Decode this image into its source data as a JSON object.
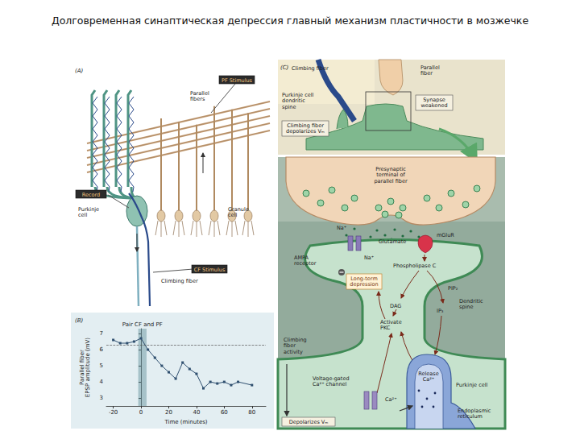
{
  "title": "Долговременная синаптическая депрессия главный механизм пластичности в мозжечке",
  "panel_a": {
    "label": "(A)",
    "pf_stimulus": "PF Stimulus",
    "parallel_fibers": "Parallel\nfibers",
    "record": "Record",
    "purkinje_cell": "Purkinje\ncell",
    "granule_cell": "Granule\ncell",
    "cf_stimulus": "CF Stimulus",
    "climbing_fiber": "Climbing fiber"
  },
  "panel_c_top": {
    "label": "(C)",
    "climbing_fiber": "Climbing fiber",
    "parallel_fiber": "Parallel\nfiber",
    "spine": "Purkinje cell\ndendritic\nspine",
    "weakened": "Synapse\nweakened",
    "depolarizes": "Climbing fiber\ndepolarizes Vₘ"
  },
  "panel_c": {
    "presynaptic": "Presynaptic\nterminal of\nparallel fiber",
    "na_out": "Na⁺",
    "glutamate": "Glutamate",
    "mglur": "mGluR",
    "ampa": "AMPA\nreceptor",
    "na_in": "Na⁺",
    "ltd": "Long-term\ndepression",
    "plc": "Phospholipase C",
    "pip2": "PIP₂",
    "dag": "DAG",
    "ip3": "IP₃",
    "pkc": "Activate\nPKC",
    "spine": "Dendritic\nspine",
    "cf_activity": "Climbing\nfiber\nactivity",
    "vgcc": "Voltage-gated\nCa²⁺ channel",
    "release": "Release\nCa²⁺",
    "ca": "Ca²⁺",
    "purkinje": "Purkinje cell",
    "er": "Endoplasmic\nreticulum",
    "depol": "Depolarizes Vₘ"
  },
  "chart_data": {
    "type": "line",
    "label": "(B)",
    "annotation": "Pair CF and PF",
    "x_label": "Time (minutes)",
    "y_label": "Parallel fiber\nEPSP amplitude (mV)",
    "x": [
      -20,
      -15,
      -10,
      -5,
      0,
      5,
      10,
      15,
      20,
      25,
      30,
      35,
      40,
      45,
      50,
      55,
      60,
      65,
      70,
      80
    ],
    "values": [
      6.6,
      6.4,
      6.4,
      6.5,
      6.7,
      6.0,
      5.5,
      5.0,
      4.6,
      4.2,
      5.2,
      4.8,
      4.5,
      3.6,
      4.0,
      3.9,
      4.0,
      3.8,
      4.0,
      3.8
    ],
    "color": "#2f4f6f",
    "marker": "square",
    "xlim": [
      -25,
      90
    ],
    "xticks": [
      -20,
      0,
      20,
      40,
      60,
      80
    ],
    "ylim": [
      2.5,
      7.3
    ],
    "yticks": [
      3,
      4,
      5,
      6,
      7
    ],
    "reference_line": 6.3,
    "pairing_interval": [
      -2,
      4
    ],
    "grid": false
  }
}
